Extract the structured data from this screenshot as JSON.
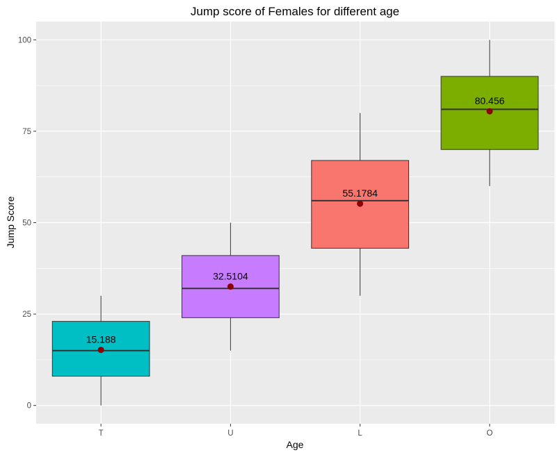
{
  "chart_data": {
    "type": "box",
    "title": "Jump score of Females for different age",
    "xlabel": "Age",
    "ylabel": "Jump Score",
    "ylim": [
      -5,
      105
    ],
    "yticks": [
      0,
      25,
      50,
      75,
      100
    ],
    "grid": true,
    "legend": "none",
    "categories": [
      "T",
      "U",
      "L",
      "O"
    ],
    "boxes": [
      {
        "category": "T",
        "min": 0,
        "q1": 8,
        "median": 15,
        "q3": 23,
        "max": 30,
        "mean": 15.188,
        "mean_label": "15.188",
        "color": "#00BFC4"
      },
      {
        "category": "U",
        "min": 15,
        "q1": 24,
        "median": 32,
        "q3": 41,
        "max": 50,
        "mean": 32.5104,
        "mean_label": "32.5104",
        "color": "#C77CFF"
      },
      {
        "category": "L",
        "min": 30,
        "q1": 43,
        "median": 56,
        "q3": 67,
        "max": 80,
        "mean": 55.1784,
        "mean_label": "55.1784",
        "color": "#F8766D"
      },
      {
        "category": "O",
        "min": 60,
        "q1": 70,
        "median": 81,
        "q3": 90,
        "max": 100,
        "mean": 80.456,
        "mean_label": "80.456",
        "color": "#7CAE00"
      }
    ],
    "mean_point_color": "#8B0000",
    "panel_background": "#EBEBEB",
    "grid_color": "#FFFFFF"
  }
}
